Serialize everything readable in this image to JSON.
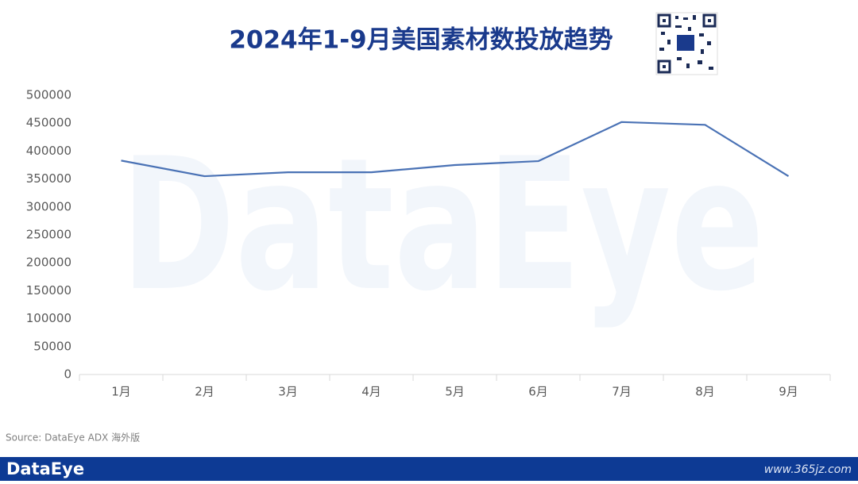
{
  "chart_data": {
    "type": "line",
    "title": "2024年1-9月美国素材数投放趋势",
    "categories": [
      "1月",
      "2月",
      "3月",
      "4月",
      "5月",
      "6月",
      "7月",
      "8月",
      "9月"
    ],
    "values": [
      383000,
      355000,
      362000,
      362000,
      375000,
      382000,
      452000,
      447000,
      355000
    ],
    "color": "#4a72b5",
    "ylim": [
      0,
      500000
    ],
    "yticks": [
      0,
      50000,
      100000,
      150000,
      200000,
      250000,
      300000,
      350000,
      400000,
      450000,
      500000
    ],
    "grid": false,
    "source": "Source: DataEye ADX 海外版",
    "watermark": "DataEye",
    "brand": "DataEye",
    "site": "www.365jz.com"
  }
}
